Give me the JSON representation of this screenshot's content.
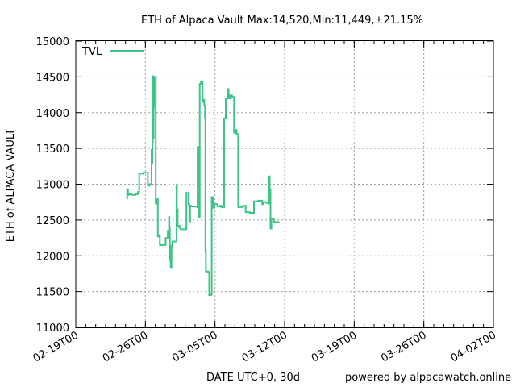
{
  "chart_data": {
    "type": "line",
    "title": "ETH of Alpaca Vault Max:14,520,Min:11,449,±21.15%",
    "xlabel": "DATE UTC+0, 30d",
    "ylabel": "ETH of ALPACA VAULT",
    "footer": "powered by alpacawatch.online",
    "ylim": [
      11000,
      15000
    ],
    "yticks": [
      11000,
      11500,
      12000,
      12500,
      13000,
      13500,
      14000,
      14500,
      15000
    ],
    "xlim": [
      "2021-02-19",
      "2021-04-02"
    ],
    "xticks": [
      "02-19T00",
      "02-26T00",
      "03-05T00",
      "03-12T00",
      "03-19T00",
      "03-26T00",
      "04-02T00"
    ],
    "grid": true,
    "legend_position": "top-left",
    "series": [
      {
        "name": "TVL",
        "color": "#3cc586",
        "points": [
          [
            "2021-02-24T02:00",
            12800
          ],
          [
            "2021-02-24T04:00",
            12930
          ],
          [
            "2021-02-24T06:00",
            12850
          ],
          [
            "2021-02-24T09:00",
            12860
          ],
          [
            "2021-02-24T14:00",
            12850
          ],
          [
            "2021-02-25T00:00",
            12860
          ],
          [
            "2021-02-25T06:00",
            12890
          ],
          [
            "2021-02-25T09:00",
            13150
          ],
          [
            "2021-02-25T19:00",
            13160
          ],
          [
            "2021-02-26T06:00",
            12980
          ],
          [
            "2021-02-26T10:00",
            13000
          ],
          [
            "2021-02-26T15:00",
            13480
          ],
          [
            "2021-02-26T16:00",
            13290
          ],
          [
            "2021-02-26T17:00",
            13590
          ],
          [
            "2021-02-26T18:00",
            14510
          ],
          [
            "2021-02-26T19:00",
            13650
          ],
          [
            "2021-02-26T20:00",
            14080
          ],
          [
            "2021-02-26T21:00",
            14500
          ],
          [
            "2021-02-26T23:00",
            14500
          ],
          [
            "2021-02-27T01:00",
            12730
          ],
          [
            "2021-02-27T03:00",
            12800
          ],
          [
            "2021-02-27T06:00",
            12270
          ],
          [
            "2021-02-27T08:00",
            12290
          ],
          [
            "2021-02-27T11:00",
            12150
          ],
          [
            "2021-02-28T01:00",
            12250
          ],
          [
            "2021-02-28T06:00",
            12350
          ],
          [
            "2021-02-28T09:00",
            12540
          ],
          [
            "2021-02-28T10:00",
            12400
          ],
          [
            "2021-02-28T11:00",
            11940
          ],
          [
            "2021-02-28T13:00",
            11830
          ],
          [
            "2021-02-28T15:00",
            12140
          ],
          [
            "2021-02-28T17:00",
            12200
          ],
          [
            "2021-03-01T03:00",
            12990
          ],
          [
            "2021-03-01T04:00",
            12650
          ],
          [
            "2021-03-01T06:00",
            12420
          ],
          [
            "2021-03-01T10:00",
            12390
          ],
          [
            "2021-03-01T13:00",
            12370
          ],
          [
            "2021-03-02T03:00",
            12880
          ],
          [
            "2021-03-02T08:00",
            12720
          ],
          [
            "2021-03-02T10:00",
            12480
          ],
          [
            "2021-03-02T12:00",
            12700
          ],
          [
            "2021-03-02T14:00",
            12690
          ],
          [
            "2021-03-03T04:00",
            12680
          ],
          [
            "2021-03-03T06:00",
            13520
          ],
          [
            "2021-03-03T09:00",
            12540
          ],
          [
            "2021-03-03T11:00",
            14400
          ],
          [
            "2021-03-03T14:00",
            14430
          ],
          [
            "2021-03-03T18:00",
            14150
          ],
          [
            "2021-03-03T20:00",
            14180
          ],
          [
            "2021-03-03T22:00",
            14100
          ],
          [
            "2021-03-04T00:00",
            13920
          ],
          [
            "2021-03-04T01:00",
            12070
          ],
          [
            "2021-03-04T02:00",
            11780
          ],
          [
            "2021-03-04T08:00",
            11770
          ],
          [
            "2021-03-04T10:00",
            11450
          ],
          [
            "2021-03-04T14:00",
            11460
          ],
          [
            "2021-03-04T16:00",
            12820
          ],
          [
            "2021-03-04T20:00",
            12670
          ],
          [
            "2021-03-04T22:00",
            12720
          ],
          [
            "2021-03-05T06:00",
            12690
          ],
          [
            "2021-03-05T12:00",
            12700
          ],
          [
            "2021-03-05T15:00",
            12680
          ],
          [
            "2021-03-05T22:00",
            13920
          ],
          [
            "2021-03-06T02:00",
            14200
          ],
          [
            "2021-03-06T07:00",
            14330
          ],
          [
            "2021-03-06T09:00",
            14200
          ],
          [
            "2021-03-06T12:00",
            14240
          ],
          [
            "2021-03-06T17:00",
            14220
          ],
          [
            "2021-03-06T22:00",
            13720
          ],
          [
            "2021-03-07T01:00",
            13760
          ],
          [
            "2021-03-07T04:00",
            13700
          ],
          [
            "2021-03-07T08:00",
            12680
          ],
          [
            "2021-03-07T20:00",
            12700
          ],
          [
            "2021-03-08T02:00",
            12610
          ],
          [
            "2021-03-08T12:00",
            12600
          ],
          [
            "2021-03-08T22:00",
            12760
          ],
          [
            "2021-03-09T08:00",
            12770
          ],
          [
            "2021-03-09T18:00",
            12720
          ],
          [
            "2021-03-09T20:00",
            12750
          ],
          [
            "2021-03-10T04:00",
            12740
          ],
          [
            "2021-03-10T09:00",
            12730
          ],
          [
            "2021-03-10T11:00",
            13110
          ],
          [
            "2021-03-10T12:00",
            12930
          ],
          [
            "2021-03-10T14:00",
            12380
          ],
          [
            "2021-03-10T16:00",
            12520
          ],
          [
            "2021-03-10T22:00",
            12470
          ],
          [
            "2021-03-11T12:00",
            12470
          ]
        ]
      }
    ]
  }
}
